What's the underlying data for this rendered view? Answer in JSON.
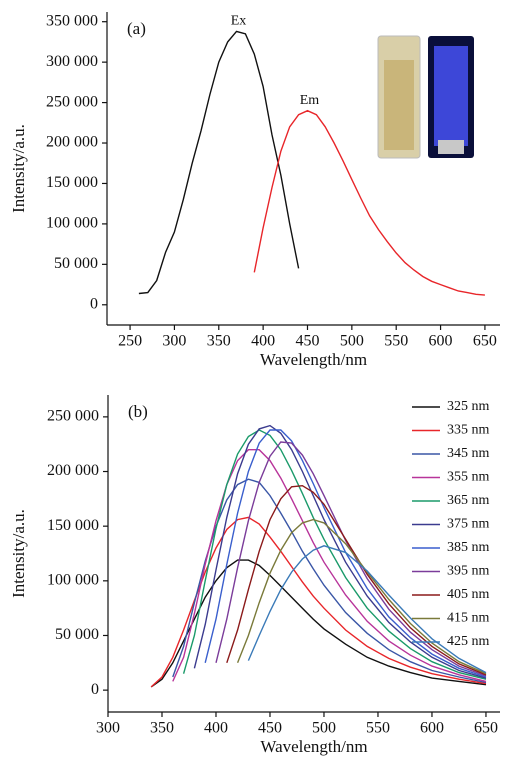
{
  "chart_data": [
    {
      "type": "line",
      "panel": "(a)",
      "x_label": "Wavelength/nm",
      "y_label": "Intensity/a.u.",
      "legend": false,
      "x": [
        260,
        270,
        280,
        290,
        300,
        310,
        320,
        330,
        340,
        350,
        360,
        370,
        380,
        390,
        400,
        410,
        420,
        430,
        440,
        450,
        460,
        470,
        480,
        490,
        500,
        510,
        520,
        530,
        540,
        550,
        560,
        570,
        580,
        590,
        600,
        610,
        620,
        630,
        640,
        650
      ],
      "series": [
        {
          "name": "Ex",
          "color": "#111111",
          "values": [
            14000,
            15000,
            30000,
            65000,
            90000,
            130000,
            175000,
            215000,
            260000,
            300000,
            325000,
            338000,
            335000,
            310000,
            270000,
            210000,
            160000,
            100000,
            45000,
            null,
            null,
            null,
            null,
            null,
            null,
            null,
            null,
            null,
            null,
            null,
            null,
            null,
            null,
            null,
            null,
            null,
            null,
            null,
            null,
            null
          ]
        },
        {
          "name": "Em",
          "color": "#e8262a",
          "values": [
            null,
            null,
            null,
            null,
            null,
            null,
            null,
            null,
            null,
            null,
            null,
            null,
            null,
            40000,
            95000,
            145000,
            190000,
            220000,
            235000,
            240000,
            235000,
            220000,
            200000,
            178000,
            155000,
            132000,
            110000,
            93000,
            78000,
            64000,
            52000,
            43000,
            35000,
            29000,
            25000,
            21000,
            17000,
            15000,
            13000,
            12000
          ]
        }
      ],
      "xlim": [
        224,
        667
      ],
      "xticks": [
        250,
        300,
        350,
        400,
        450,
        500,
        550,
        600,
        650
      ],
      "ylim": [
        -25000,
        362000
      ],
      "yticks": [
        0,
        {
          "value": 50000,
          "label": "50 000"
        },
        {
          "value": 100000,
          "label": "100 000"
        },
        {
          "value": 150000,
          "label": "150 000"
        },
        {
          "value": 200000,
          "label": "200 000"
        },
        {
          "value": 250000,
          "label": "250 000"
        },
        {
          "value": 300000,
          "label": "300 000"
        },
        {
          "value": 350000,
          "label": "350 000"
        }
      ]
    },
    {
      "type": "line",
      "panel": "(b)",
      "x_label": "Wavelength/nm",
      "y_label": "Intensity/a.u.",
      "legend": "upper right",
      "x": [
        340,
        350,
        360,
        370,
        380,
        390,
        400,
        410,
        420,
        430,
        440,
        450,
        460,
        470,
        480,
        490,
        500,
        520,
        540,
        560,
        580,
        600,
        625,
        650
      ],
      "series": [
        {
          "name": "325 nm",
          "color": "#111111",
          "values": [
            3000,
            10000,
            25000,
            45000,
            65000,
            85000,
            100000,
            112000,
            119000,
            119000,
            114000,
            105000,
            95000,
            85000,
            75000,
            65000,
            56000,
            42000,
            30000,
            22000,
            16000,
            11000,
            8000,
            5000
          ]
        },
        {
          "name": "335 nm",
          "color": "#e8262a",
          "values": [
            3000,
            12000,
            30000,
            55000,
            82000,
            108000,
            130000,
            147000,
            156000,
            158000,
            152000,
            140000,
            127000,
            113000,
            99000,
            86000,
            75000,
            55000,
            40000,
            29000,
            21000,
            15000,
            10000,
            6000
          ]
        },
        {
          "name": "345 nm",
          "color": "#3a56a6",
          "values": [
            null,
            null,
            12000,
            40000,
            80000,
            118000,
            150000,
            174000,
            188000,
            193000,
            190000,
            178000,
            162000,
            145000,
            127000,
            111000,
            96000,
            71000,
            52000,
            37000,
            26000,
            18000,
            12000,
            7000
          ]
        },
        {
          "name": "355 nm",
          "color": "#b8349a",
          "values": [
            null,
            null,
            8000,
            30000,
            70000,
            115000,
            155000,
            188000,
            210000,
            220000,
            220000,
            210000,
            194000,
            175000,
            155000,
            135000,
            117000,
            87000,
            63000,
            45000,
            32000,
            22000,
            14000,
            8000
          ]
        },
        {
          "name": "365 nm",
          "color": "#1a9a6a",
          "values": [
            null,
            null,
            null,
            15000,
            50000,
            100000,
            148000,
            188000,
            216000,
            232000,
            238000,
            233000,
            220000,
            201000,
            180000,
            158000,
            138000,
            103000,
            75000,
            54000,
            38000,
            26000,
            16000,
            10000
          ]
        },
        {
          "name": "375 nm",
          "color": "#3b3b8f",
          "values": [
            null,
            null,
            null,
            null,
            20000,
            60000,
            110000,
            158000,
            198000,
            225000,
            239000,
            242000,
            235000,
            220000,
            200000,
            178000,
            156000,
            117000,
            86000,
            62000,
            44000,
            30000,
            18000,
            11000
          ]
        },
        {
          "name": "385 nm",
          "color": "#3a5fcd",
          "values": [
            null,
            null,
            null,
            null,
            null,
            25000,
            65000,
            115000,
            162000,
            200000,
            226000,
            238000,
            238000,
            228000,
            210000,
            189000,
            167000,
            126000,
            93000,
            67000,
            48000,
            33000,
            20000,
            12000
          ]
        },
        {
          "name": "395 nm",
          "color": "#7b3c9a",
          "values": [
            null,
            null,
            null,
            null,
            null,
            null,
            25000,
            65000,
            112000,
            155000,
            190000,
            214000,
            227000,
            226000,
            215000,
            198000,
            178000,
            137000,
            102000,
            74000,
            53000,
            37000,
            22000,
            13000
          ]
        },
        {
          "name": "405 nm",
          "color": "#8b1a1a",
          "values": [
            null,
            null,
            null,
            null,
            null,
            null,
            null,
            25000,
            55000,
            92000,
            127000,
            156000,
            175000,
            186000,
            187000,
            181000,
            170000,
            138000,
            106000,
            79000,
            57000,
            40000,
            24000,
            14000
          ]
        },
        {
          "name": "415 nm",
          "color": "#7a7a3a",
          "values": [
            null,
            null,
            null,
            null,
            null,
            null,
            null,
            null,
            25000,
            50000,
            80000,
            107000,
            128000,
            144000,
            153000,
            156000,
            153000,
            134000,
            108000,
            83000,
            61000,
            43000,
            26000,
            15000
          ]
        },
        {
          "name": "425 nm",
          "color": "#3a7ab8",
          "values": [
            null,
            null,
            null,
            null,
            null,
            null,
            null,
            null,
            null,
            27000,
            50000,
            72000,
            92000,
            108000,
            120000,
            128000,
            132000,
            126000,
            109000,
            87000,
            66000,
            47000,
            29000,
            16000
          ]
        }
      ],
      "xlim": [
        300,
        663
      ],
      "xticks": [
        300,
        350,
        400,
        450,
        500,
        550,
        600,
        650
      ],
      "ylim": [
        -20000,
        270000
      ],
      "yticks": [
        0,
        {
          "value": 50000,
          "label": "50 000"
        },
        {
          "value": 100000,
          "label": "100 000"
        },
        {
          "value": 150000,
          "label": "150 000"
        },
        {
          "value": 200000,
          "label": "200 000"
        },
        {
          "value": 250000,
          "label": "250 000"
        }
      ]
    }
  ]
}
